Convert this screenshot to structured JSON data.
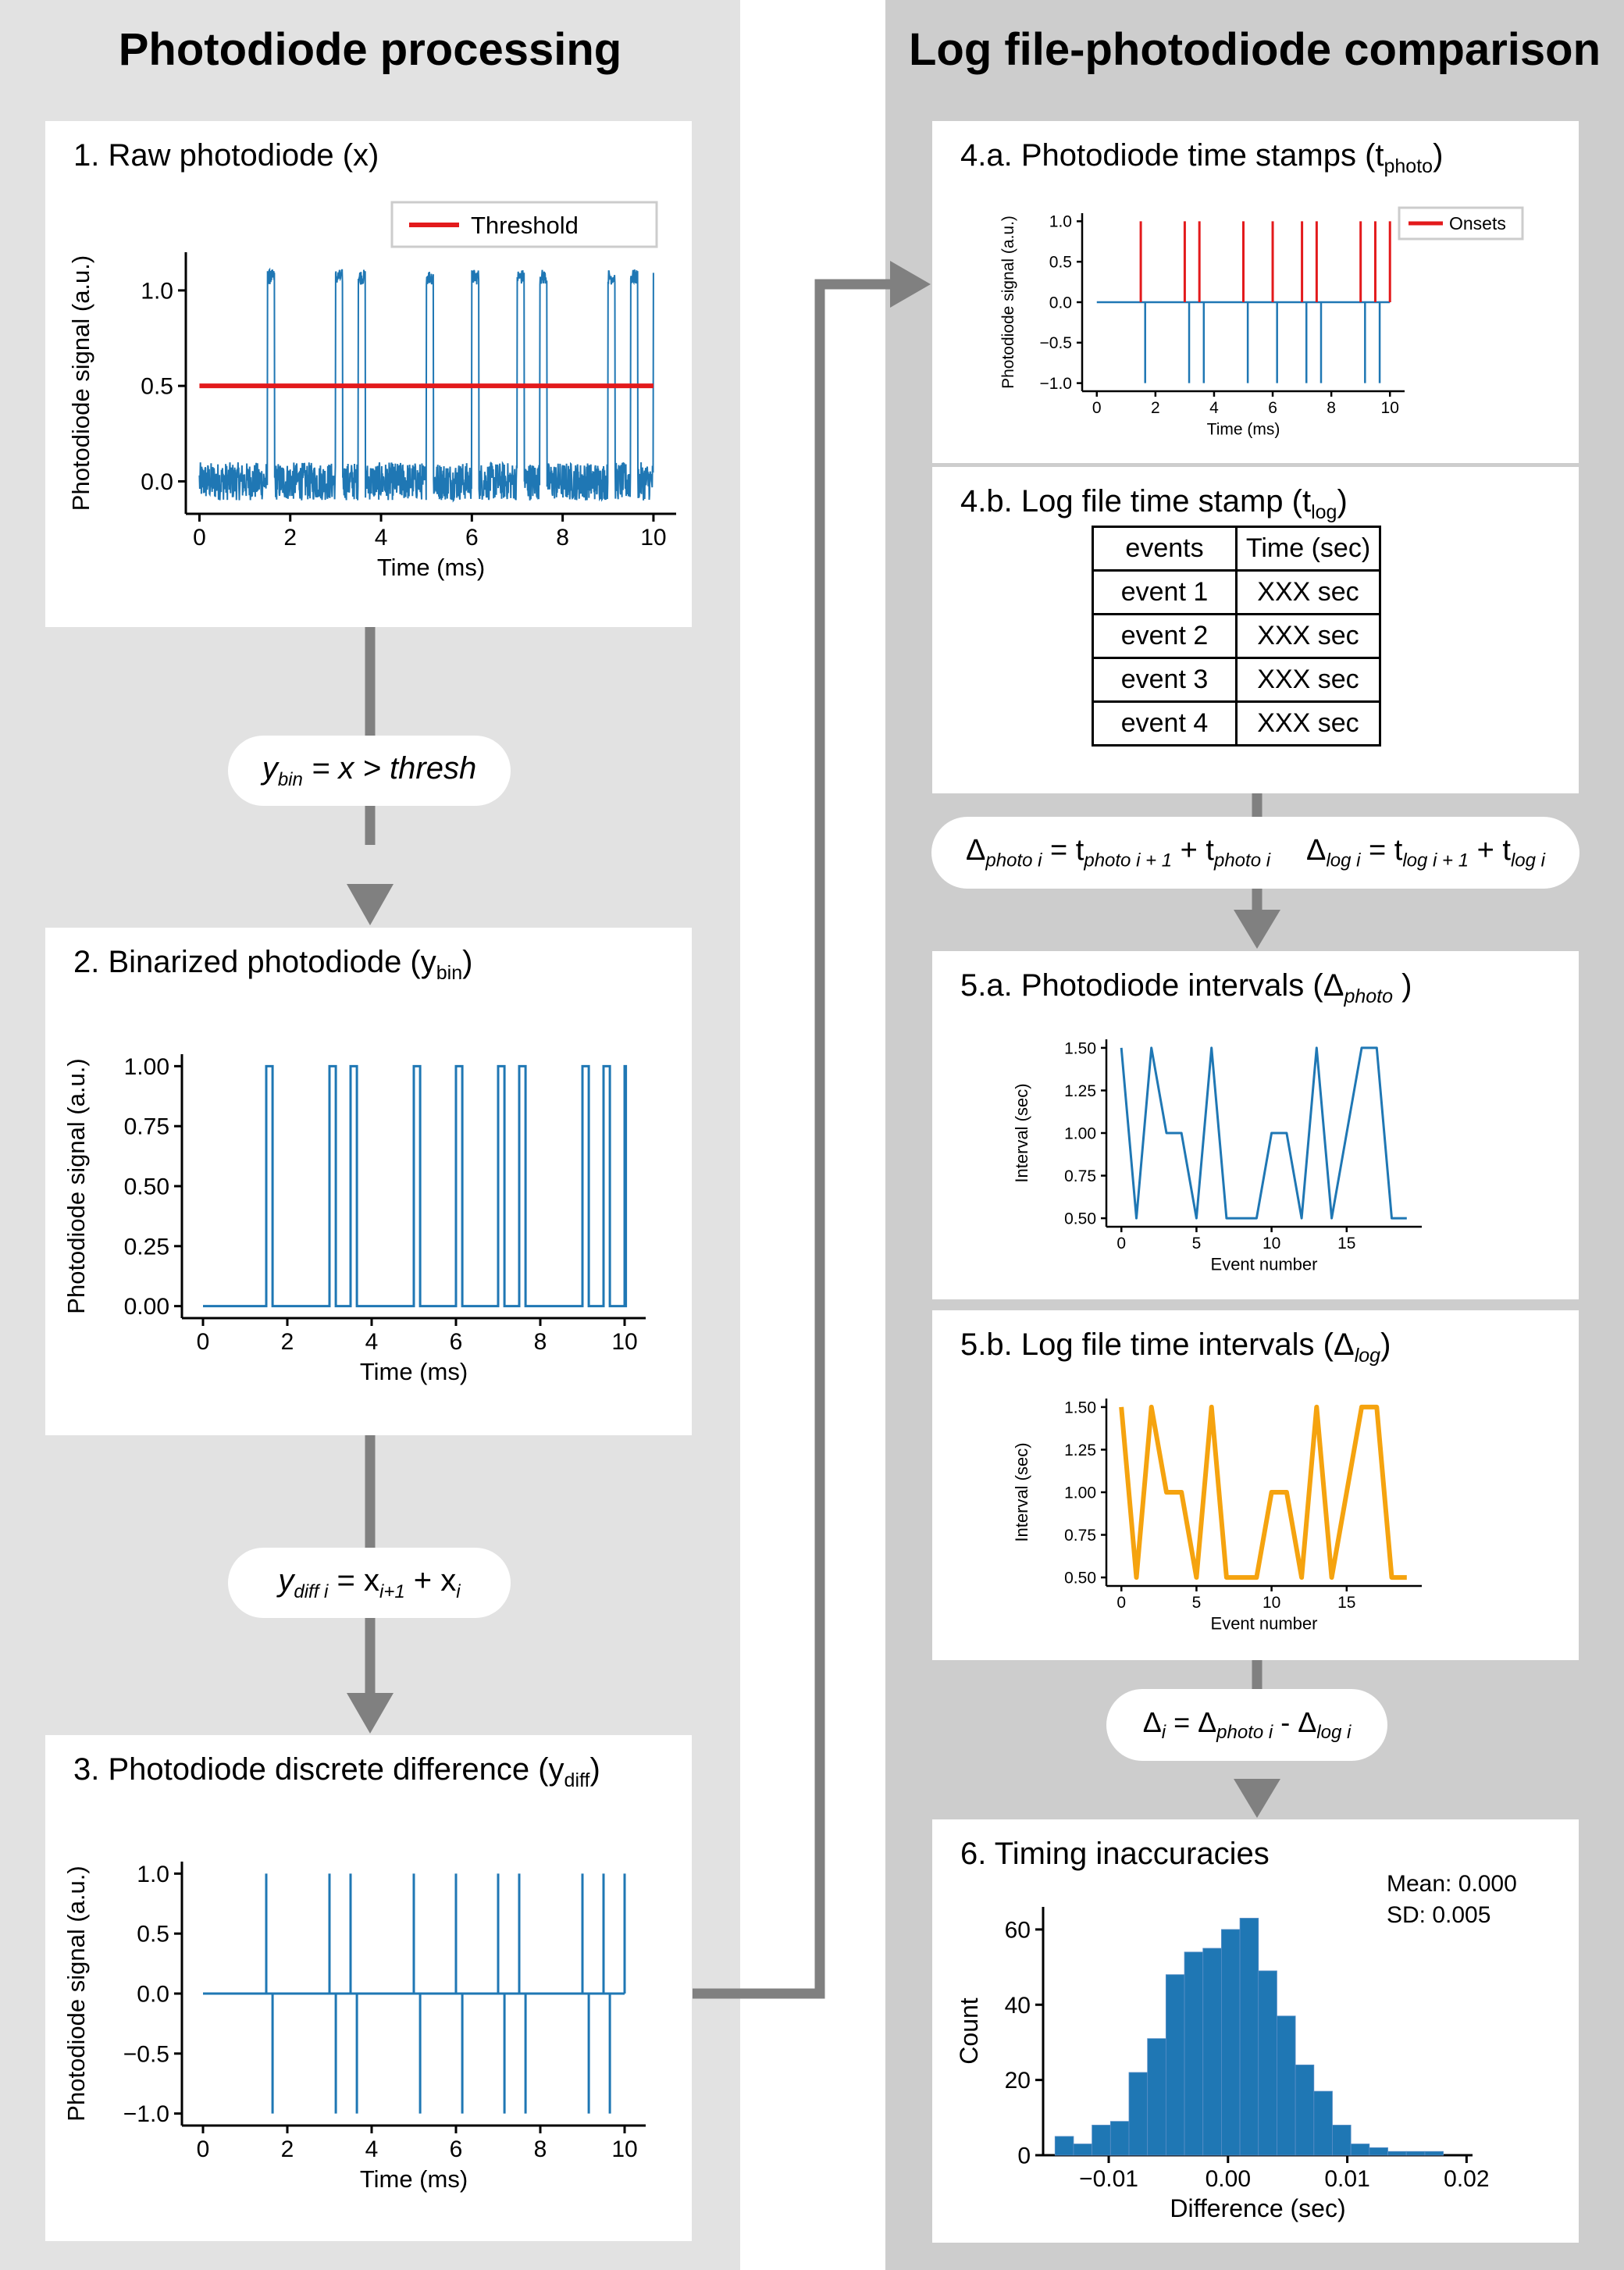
{
  "left_column": {
    "title": "Photodiode processing"
  },
  "right_column": {
    "title": "Log file-photodiode comparison"
  },
  "panels": {
    "p1": {
      "title": "1. Raw photodiode (x)"
    },
    "p2": {
      "title_main": "2. Binarized photodiode (y",
      "title_sub": "bin",
      "title_end": ")"
    },
    "p3": {
      "title_main": "3. Photodiode discrete difference (y",
      "title_sub": "diff",
      "title_end": ")"
    },
    "p4a": {
      "title_main": "4.a. Photodiode time stamps (t",
      "title_sub": "photo",
      "title_end": ")"
    },
    "p4b": {
      "title_main": "4.b. Log file time stamp (t",
      "title_sub": "log",
      "title_end": ")"
    },
    "p5a": {
      "title_main": "5.a. Photodiode intervals (Δ",
      "title_sub": "photo",
      "title_end": " )"
    },
    "p5b": {
      "title_main": "5.b. Log file time intervals (Δ",
      "title_sub": "log",
      "title_end": ")"
    },
    "p6": {
      "title": "6. Timing inaccuracies"
    }
  },
  "formulas": {
    "f1": {
      "y": "y",
      "sub": "bin",
      "rest": " = x > thresh"
    },
    "f2": {
      "y": "y",
      "sub": "diff i",
      "eq": " = x",
      "sub2": "i+1",
      "plus": " + x",
      "sub3": "i"
    },
    "f3": {
      "a": "Δ",
      "a_sub": "photo i",
      "a_eq": " = t",
      "a_sub2": "photo i + 1",
      "a_plus": " + t",
      "a_sub3": "photo i",
      "b": "Δ",
      "b_sub": "log i",
      "b_eq": " = t",
      "b_sub2": "log i + 1",
      "b_plus": " + t",
      "b_sub3": "log i"
    },
    "f4": {
      "a": "Δ",
      "a_sub": "i",
      "eq": " = Δ",
      "sub2": "photo i",
      "minus": " - Δ",
      "sub3": "log i"
    }
  },
  "table": {
    "headers": [
      "events",
      "Time (sec)"
    ],
    "rows": [
      [
        "event 1",
        "XXX sec"
      ],
      [
        "event 2",
        "XXX sec"
      ],
      [
        "event 3",
        "XXX sec"
      ],
      [
        "event 4",
        "XXX sec"
      ]
    ]
  },
  "colors": {
    "blue": "#1f77b4",
    "red": "#e31a1c",
    "orange": "#f5a30f",
    "arrow": "#808080"
  },
  "chart_data": [
    {
      "id": "raw",
      "type": "line",
      "xlabel": "Time (ms)",
      "ylabel": "Photodiode signal (a.u.)",
      "xlim": [
        -0.3,
        10.5
      ],
      "ylim": [
        -0.17,
        1.2
      ],
      "xticks": [
        0,
        2,
        4,
        6,
        8,
        10
      ],
      "xtick_labels": [
        "0",
        "2",
        "4",
        "6",
        "8",
        "10"
      ],
      "yticks": [
        0.0,
        0.5,
        1.0
      ],
      "ytick_labels": [
        "0.0",
        "0.5",
        "1.0"
      ],
      "pulses": [
        [
          1.5,
          1.65
        ],
        [
          3.0,
          3.15
        ],
        [
          3.5,
          3.65
        ],
        [
          5.0,
          5.15
        ],
        [
          6.0,
          6.15
        ],
        [
          7.0,
          7.15
        ],
        [
          7.5,
          7.65
        ],
        [
          9.0,
          9.15
        ],
        [
          9.5,
          9.65
        ],
        [
          10.0,
          10.03
        ]
      ],
      "noise_range": [
        -0.1,
        0.1
      ],
      "pulse_level": 1.07,
      "threshold": {
        "name": "Threshold",
        "value": 0.5,
        "x": [
          0,
          10
        ]
      },
      "legend": "top-right"
    },
    {
      "id": "bin",
      "type": "line",
      "xlabel": "Time (ms)",
      "ylabel": "Photodiode signal (a.u.)",
      "xlim": [
        -0.5,
        10.5
      ],
      "ylim": [
        -0.05,
        1.05
      ],
      "xticks": [
        0,
        2,
        4,
        6,
        8,
        10
      ],
      "xtick_labels": [
        "0",
        "2",
        "4",
        "6",
        "8",
        "10"
      ],
      "yticks": [
        0.0,
        0.25,
        0.5,
        0.75,
        1.0
      ],
      "ytick_labels": [
        "0.00",
        "0.25",
        "0.50",
        "0.75",
        "1.00"
      ],
      "pulses": [
        [
          1.5,
          1.65
        ],
        [
          3.0,
          3.15
        ],
        [
          3.5,
          3.65
        ],
        [
          5.0,
          5.15
        ],
        [
          6.0,
          6.15
        ],
        [
          7.0,
          7.15
        ],
        [
          7.5,
          7.65
        ],
        [
          9.0,
          9.15
        ],
        [
          9.5,
          9.65
        ],
        [
          10.0,
          10.03
        ]
      ]
    },
    {
      "id": "diff",
      "type": "line",
      "xlabel": "Time (ms)",
      "ylabel": "Photodiode signal (a.u.)",
      "xlim": [
        -0.5,
        10.5
      ],
      "ylim": [
        -1.1,
        1.1
      ],
      "xticks": [
        0,
        2,
        4,
        6,
        8,
        10
      ],
      "xtick_labels": [
        "0",
        "2",
        "4",
        "6",
        "8",
        "10"
      ],
      "yticks": [
        -1.0,
        -0.5,
        0.0,
        0.5,
        1.0
      ],
      "ytick_labels": [
        "−1.0",
        "−0.5",
        "0.0",
        "0.5",
        "1.0"
      ],
      "onsets": [
        1.5,
        3.0,
        3.5,
        5.0,
        6.0,
        7.0,
        7.5,
        9.0,
        9.5,
        10.0
      ],
      "offsets": [
        1.65,
        3.15,
        3.65,
        5.15,
        6.15,
        7.15,
        7.65,
        9.15,
        9.65
      ]
    },
    {
      "id": "stamps",
      "type": "line",
      "xlabel": "Time (ms)",
      "ylabel": "Photodiode signal (a.u.)",
      "xlim": [
        -0.5,
        10.5
      ],
      "ylim": [
        -1.1,
        1.1
      ],
      "xticks": [
        0,
        2,
        4,
        6,
        8,
        10
      ],
      "xtick_labels": [
        "0",
        "2",
        "4",
        "6",
        "8",
        "10"
      ],
      "yticks": [
        -1.0,
        -0.5,
        0.0,
        0.5,
        1.0
      ],
      "ytick_labels": [
        "−1.0",
        "−0.5",
        "0.0",
        "0.5",
        "1.0"
      ],
      "onsets": [
        1.5,
        3.0,
        3.5,
        5.0,
        6.0,
        7.0,
        7.5,
        9.0,
        9.5,
        10.0
      ],
      "offsets": [
        1.65,
        3.15,
        3.65,
        5.15,
        6.15,
        7.15,
        7.65,
        9.15,
        9.65
      ],
      "onsets_series": {
        "name": "Onsets"
      },
      "legend": "top-right"
    },
    {
      "id": "intervals_photo",
      "type": "line",
      "xlabel": "Event number",
      "ylabel": "Interval (sec)",
      "xlim": [
        -1,
        20
      ],
      "ylim": [
        0.45,
        1.55
      ],
      "xticks": [
        0,
        5,
        10,
        15
      ],
      "xtick_labels": [
        "0",
        "5",
        "10",
        "15"
      ],
      "yticks": [
        0.5,
        0.75,
        1.0,
        1.25,
        1.5
      ],
      "ytick_labels": [
        "0.50",
        "0.75",
        "1.00",
        "1.25",
        "1.50"
      ],
      "x": [
        0,
        1,
        2,
        3,
        4,
        5,
        6,
        7,
        8,
        9,
        10,
        11,
        12,
        13,
        14,
        15,
        16,
        17,
        18,
        19
      ],
      "values": [
        1.5,
        0.5,
        1.5,
        1.0,
        1.0,
        0.5,
        1.5,
        0.5,
        0.5,
        0.5,
        1.0,
        1.0,
        0.5,
        1.5,
        0.5,
        1.0,
        1.5,
        1.5,
        0.5,
        0.5
      ]
    },
    {
      "id": "intervals_log",
      "type": "line",
      "xlabel": "Event number",
      "ylabel": "Interval (sec)",
      "xlim": [
        -1,
        20
      ],
      "ylim": [
        0.45,
        1.55
      ],
      "xticks": [
        0,
        5,
        10,
        15
      ],
      "xtick_labels": [
        "0",
        "5",
        "10",
        "15"
      ],
      "yticks": [
        0.5,
        0.75,
        1.0,
        1.25,
        1.5
      ],
      "ytick_labels": [
        "0.50",
        "0.75",
        "1.00",
        "1.25",
        "1.50"
      ],
      "x": [
        0,
        1,
        2,
        3,
        4,
        5,
        6,
        7,
        8,
        9,
        10,
        11,
        12,
        13,
        14,
        15,
        16,
        17,
        18,
        19
      ],
      "values": [
        1.5,
        0.5,
        1.5,
        1.0,
        1.0,
        0.5,
        1.5,
        0.5,
        0.5,
        0.5,
        1.0,
        1.0,
        0.5,
        1.5,
        0.5,
        1.0,
        1.5,
        1.5,
        0.5,
        0.5
      ]
    },
    {
      "id": "hist",
      "type": "bar",
      "xlabel": "Difference (sec)",
      "ylabel": "Count",
      "xlim": [
        -0.0155,
        0.0205
      ],
      "ylim": [
        0,
        66
      ],
      "xticks": [
        -0.01,
        0.0,
        0.01,
        0.02
      ],
      "xtick_labels": [
        "−0.01",
        "0.00",
        "0.01",
        "0.02"
      ],
      "yticks": [
        0,
        20,
        40,
        60
      ],
      "ytick_labels": [
        "0",
        "20",
        "40",
        "60"
      ],
      "bin_start": -0.0145,
      "bin_width": 0.00155,
      "values": [
        5,
        3,
        8,
        9,
        22,
        31,
        48,
        54,
        55,
        60,
        63,
        49,
        37,
        24,
        17,
        8,
        3,
        2,
        1,
        1,
        1,
        0,
        0
      ],
      "annotations": {
        "mean": "Mean: 0.000",
        "sd": "SD: 0.005"
      }
    }
  ]
}
